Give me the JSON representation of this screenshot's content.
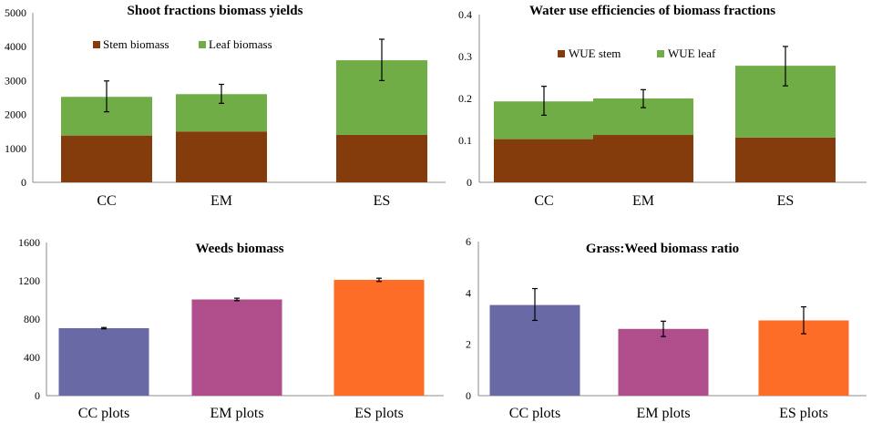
{
  "chart_data": [
    {
      "id": "shoot",
      "type": "bar",
      "stacked": true,
      "title": "Shoot fractions biomass yields",
      "categories": [
        "CC",
        "EM",
        "ES"
      ],
      "ylim": [
        0,
        5000
      ],
      "yticks": [
        0,
        1000,
        2000,
        3000,
        4000,
        5000
      ],
      "ytick_labels": [
        "0",
        "1000",
        "2000",
        "3000",
        "4000",
        "5000"
      ],
      "series": [
        {
          "name": "Stem biomass",
          "color": "#843C0C",
          "values": [
            1380,
            1500,
            1400
          ]
        },
        {
          "name": "Leaf biomass",
          "color": "#70AD47",
          "values": [
            1140,
            1100,
            2200
          ]
        }
      ],
      "error_low": [
        2080,
        2330,
        3000
      ],
      "error_high": [
        2990,
        2890,
        4220
      ],
      "legend": "top-left"
    },
    {
      "id": "wue",
      "type": "bar",
      "stacked": true,
      "title": "Water use efficiencies of biomass fractions",
      "categories": [
        "CC",
        "EM",
        "ES"
      ],
      "ylim": [
        0,
        0.4
      ],
      "yticks": [
        0,
        0.1,
        0.2,
        0.3,
        0.4
      ],
      "ytick_labels": [
        "0",
        "0.1",
        "0.2",
        "0.3",
        "0.4"
      ],
      "series": [
        {
          "name": "WUE stem",
          "color": "#843C0C",
          "values": [
            0.103,
            0.113,
            0.107
          ]
        },
        {
          "name": "WUE leaf",
          "color": "#70AD47",
          "values": [
            0.09,
            0.087,
            0.171
          ]
        }
      ],
      "error_low": [
        0.16,
        0.178,
        0.23
      ],
      "error_high": [
        0.229,
        0.221,
        0.324
      ],
      "legend": "top-left"
    },
    {
      "id": "weeds",
      "type": "bar",
      "stacked": false,
      "title": "Weeds biomass",
      "categories": [
        "CC plots",
        "EM plots",
        "ES plots"
      ],
      "ylim": [
        0,
        1600
      ],
      "yticks": [
        0,
        400,
        800,
        1200,
        1600
      ],
      "ytick_labels": [
        "0",
        "400",
        "800",
        "1200",
        "1600"
      ],
      "values": [
        705,
        1005,
        1210
      ],
      "colors": [
        "#6969A5",
        "#AF4E8A",
        "#FE6D27"
      ],
      "error_low": [
        698,
        992,
        1193
      ],
      "error_high": [
        712,
        1018,
        1227
      ]
    },
    {
      "id": "ratio",
      "type": "bar",
      "stacked": false,
      "title": "Grass:Weed biomass ratio",
      "categories": [
        "CC plots",
        "EM plots",
        "ES plots"
      ],
      "ylim": [
        0,
        6
      ],
      "yticks": [
        0,
        2,
        4,
        6
      ],
      "ytick_labels": [
        "0",
        "2",
        "4",
        "6"
      ],
      "values": [
        3.53,
        2.6,
        2.93
      ],
      "colors": [
        "#6969A5",
        "#AF4E8A",
        "#FE6D27"
      ],
      "error_low": [
        2.93,
        2.3,
        2.41
      ],
      "error_high": [
        4.17,
        2.9,
        3.46
      ]
    }
  ]
}
